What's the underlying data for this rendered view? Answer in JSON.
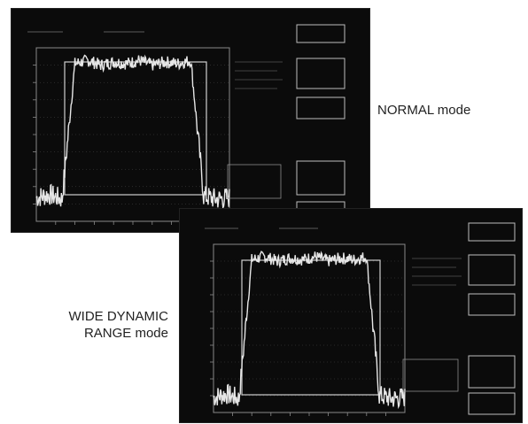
{
  "captions": {
    "normal": "NORMAL mode",
    "wide_line1": "WIDE DYNAMIC",
    "wide_line2": "RANGE mode"
  },
  "colors": {
    "screen_bg": "#0b0b0b",
    "trace": "#e6e6e6",
    "grid": "#4a4a4a",
    "caption_text": "#222222"
  },
  "icons": {
    "spectrum_trace": "noisy-spectrum-trace",
    "softkey_button": "outlined-softkey"
  },
  "chart_data": [
    {
      "type": "line",
      "screen": "normal",
      "series": [
        {
          "values": [
            -95,
            -93,
            -96,
            -10,
            -8,
            -11,
            -9,
            -10,
            -8,
            -11,
            -9,
            -10,
            -8,
            -94,
            -96,
            -95
          ]
        }
      ],
      "x": [
        0,
        1,
        2,
        3,
        4,
        5,
        6,
        7,
        8,
        9,
        10,
        11,
        12,
        13,
        14,
        15
      ],
      "ylim": [
        -110,
        0
      ],
      "grid": true
    },
    {
      "type": "line",
      "screen": "wide",
      "series": [
        {
          "values": [
            -100,
            -98,
            -101,
            -10,
            -8,
            -11,
            -9,
            -10,
            -8,
            -11,
            -9,
            -10,
            -8,
            -99,
            -101,
            -100
          ]
        }
      ],
      "x": [
        0,
        1,
        2,
        3,
        4,
        5,
        6,
        7,
        8,
        9,
        10,
        11,
        12,
        13,
        14,
        15
      ],
      "ylim": [
        -110,
        0
      ],
      "grid": true
    }
  ]
}
